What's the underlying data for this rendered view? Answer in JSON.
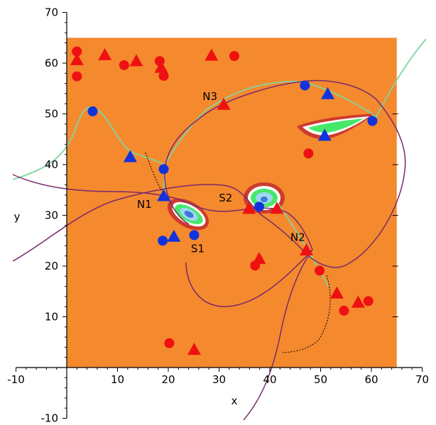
{
  "chart_data": {
    "type": "scatter",
    "title": "",
    "xlabel": "x",
    "ylabel": "y",
    "xlim": [
      -10,
      70
    ],
    "ylim": [
      -10,
      70
    ],
    "x_ticks": [
      -10,
      10,
      20,
      30,
      40,
      50,
      60,
      70
    ],
    "y_ticks": [
      -10,
      10,
      20,
      30,
      40,
      50,
      60,
      70
    ],
    "grid": false,
    "legend": "none",
    "domain_box": {
      "x": [
        0,
        65
      ],
      "y": [
        0,
        65
      ]
    },
    "colors": {
      "field": "#f5892e",
      "red_marker": "#ee1111",
      "blue_marker": "#1133dd",
      "separatrix": "#7fd6a0",
      "trajectory": "#7a2a6a"
    },
    "annotations": [
      {
        "text": "N3",
        "x": 28.2,
        "y": 52.7
      },
      {
        "text": "N1",
        "x": 15.3,
        "y": 31.5
      },
      {
        "text": "S1",
        "x": 25.8,
        "y": 22.7
      },
      {
        "text": "S2",
        "x": 31.3,
        "y": 32.7
      },
      {
        "text": "N2",
        "x": 45.5,
        "y": 25.0
      }
    ],
    "series": [
      {
        "marker": "circle",
        "color": "red",
        "points": [
          [
            2,
            62.3
          ],
          [
            2,
            57.4
          ],
          [
            11.3,
            59.6
          ],
          [
            18.3,
            60.4
          ],
          [
            19.1,
            57.5
          ],
          [
            33,
            61.4
          ],
          [
            37.1,
            20.1
          ],
          [
            47.6,
            42.2
          ],
          [
            49.8,
            19.1
          ],
          [
            54.6,
            11.2
          ],
          [
            59.4,
            13.1
          ],
          [
            20.2,
            4.8
          ]
        ]
      },
      {
        "marker": "triangle",
        "color": "red",
        "points": [
          [
            2,
            60.5
          ],
          [
            7.5,
            61.5
          ],
          [
            13.7,
            60.3
          ],
          [
            18.6,
            59
          ],
          [
            28.5,
            61.4
          ],
          [
            30.9,
            51.7
          ],
          [
            37.9,
            21.3
          ],
          [
            35.9,
            31.2
          ],
          [
            41.4,
            31.2
          ],
          [
            47.2,
            23
          ],
          [
            53.2,
            14.5
          ],
          [
            57.4,
            12.7
          ],
          [
            25.1,
            3.4
          ]
        ]
      },
      {
        "marker": "circle",
        "color": "blue",
        "points": [
          [
            5.1,
            50.5
          ],
          [
            19.1,
            39.1
          ],
          [
            18.9,
            25
          ],
          [
            25.1,
            26.1
          ],
          [
            46.9,
            55.6
          ],
          [
            60.2,
            48.6
          ],
          [
            37.9,
            31.7
          ]
        ]
      },
      {
        "marker": "triangle",
        "color": "blue",
        "points": [
          [
            12.5,
            41.4
          ],
          [
            19.1,
            33.7
          ],
          [
            21.1,
            25.7
          ],
          [
            51.4,
            53.8
          ],
          [
            50.8,
            45.6
          ]
        ]
      }
    ]
  }
}
